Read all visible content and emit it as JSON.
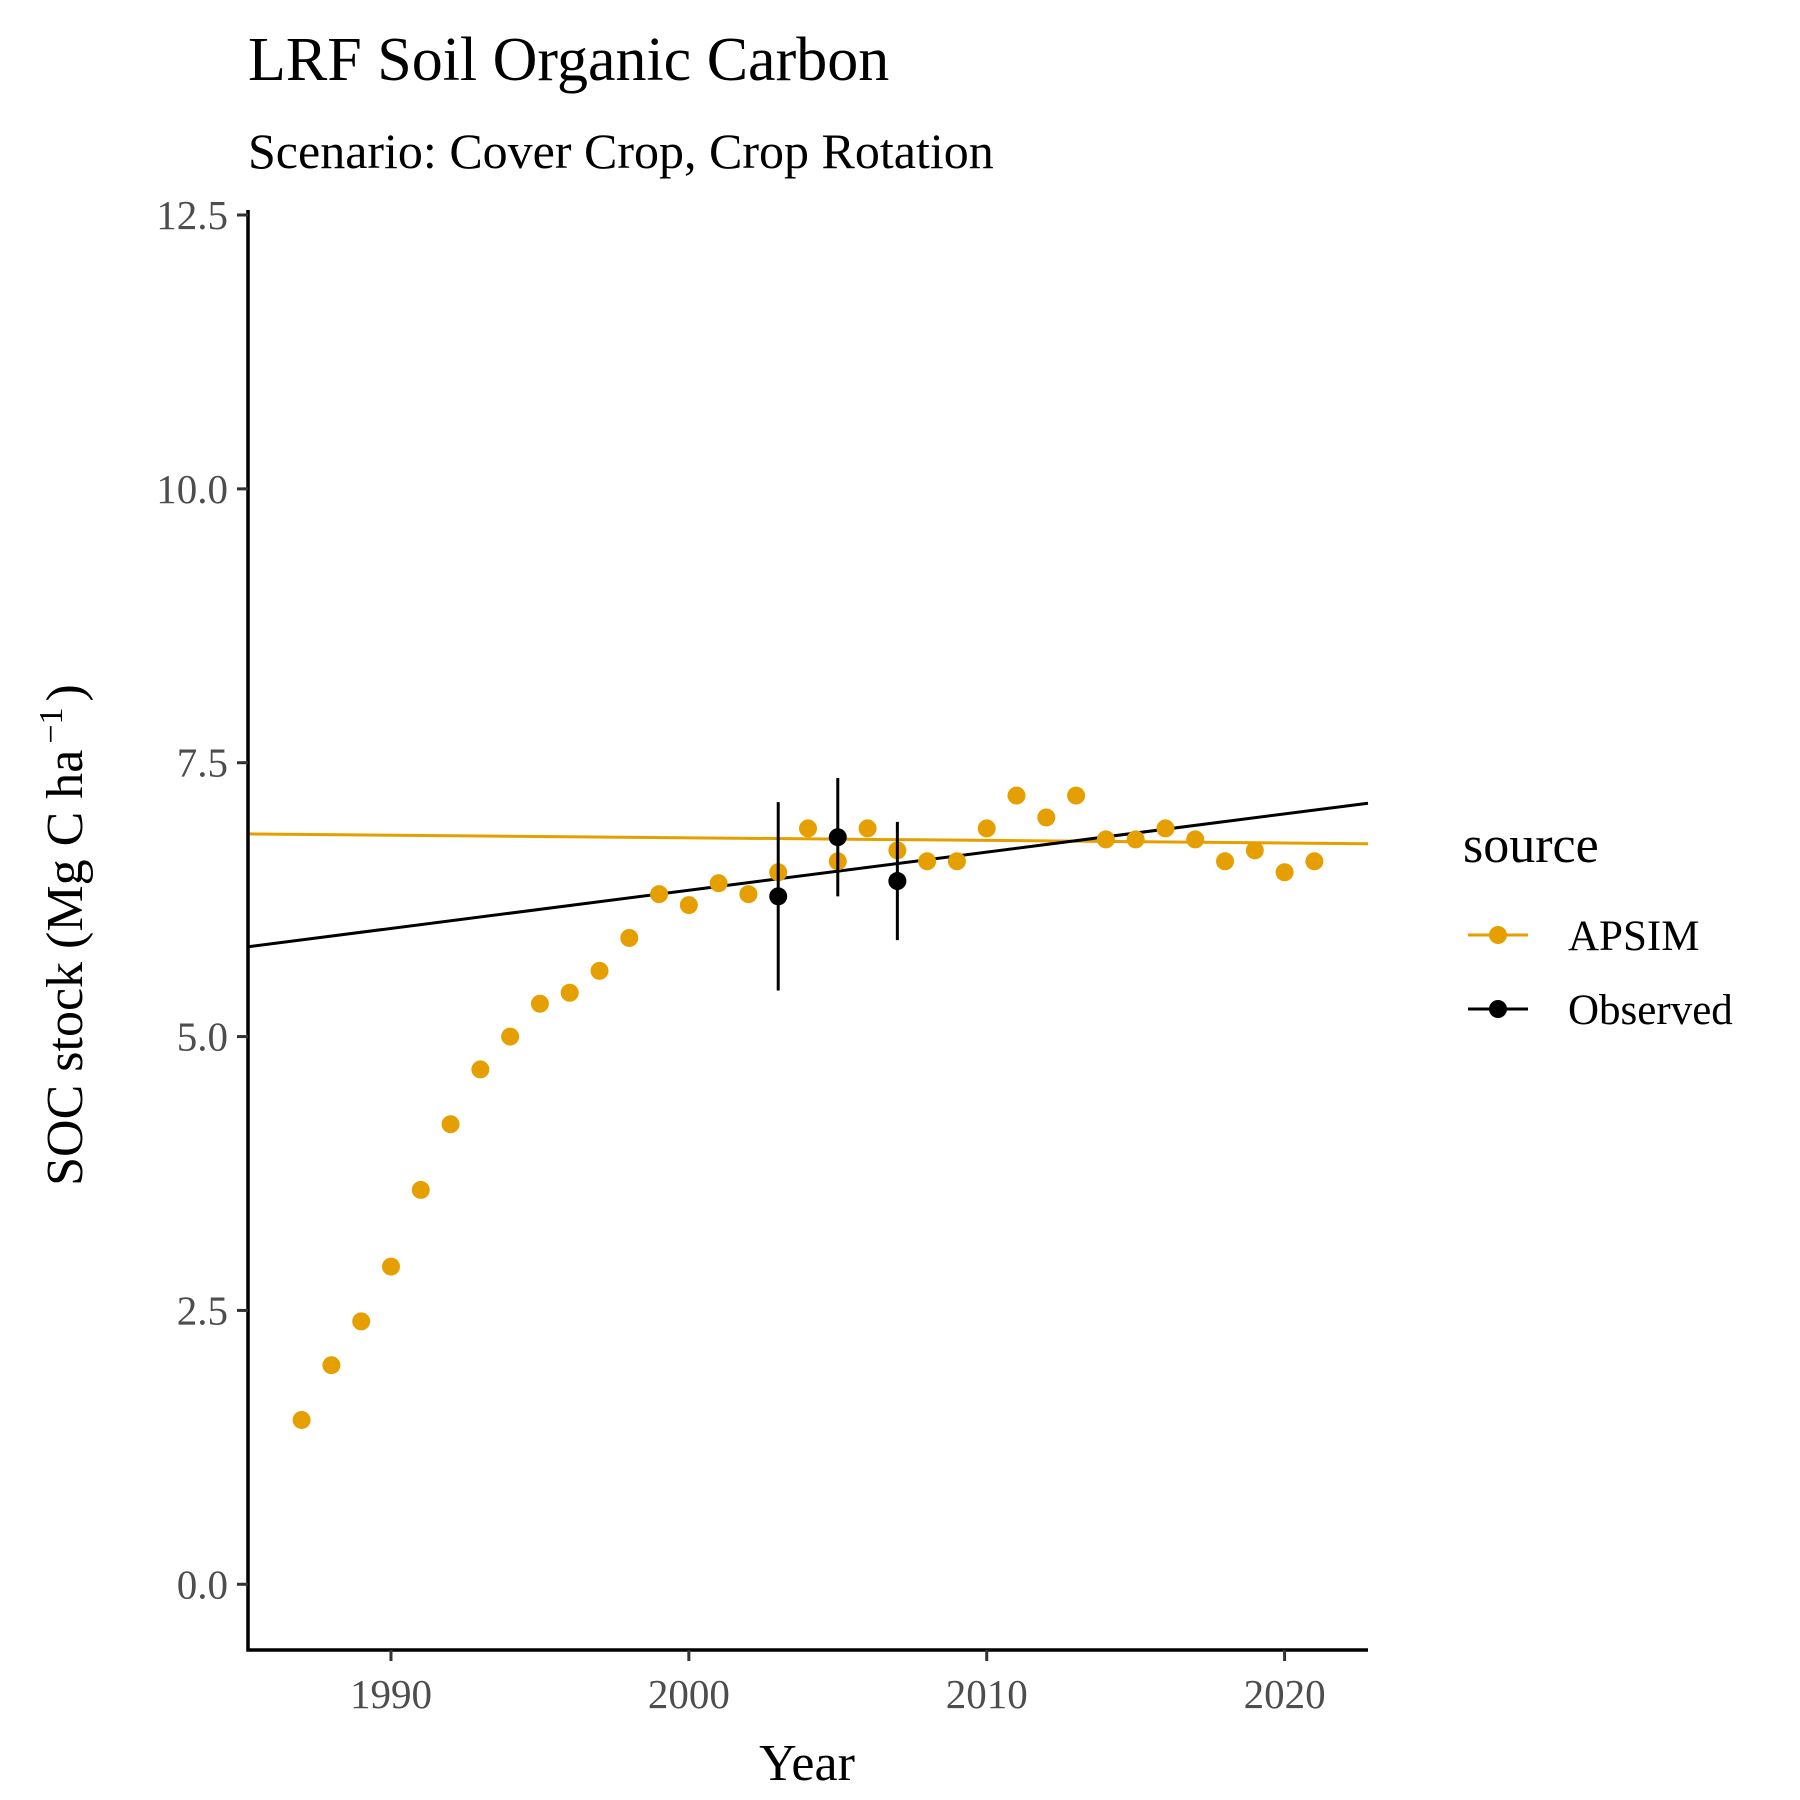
{
  "chart_data": {
    "type": "scatter",
    "title": "LRF Soil Organic Carbon",
    "subtitle": "Scenario: Cover Crop, Crop Rotation",
    "xlabel": "Year",
    "ylabel": "SOC stock (Mg C ha",
    "ylabel_superscript": "−1",
    "ylabel_close": ")",
    "xlim": [
      1985.2,
      2022.8
    ],
    "ylim": [
      -0.6,
      12.5
    ],
    "x_ticks": [
      1990,
      2000,
      2010,
      2020
    ],
    "x_tick_labels": [
      "1990",
      "2000",
      "2010",
      "2020"
    ],
    "y_ticks": [
      0,
      2.5,
      5,
      7.5,
      10,
      12.5
    ],
    "y_tick_labels": [
      "0.0",
      "2.5",
      "5.0",
      "7.5",
      "10.0",
      "12.5"
    ],
    "grid": false,
    "legend": {
      "title": "source",
      "position": "right",
      "entries": [
        "APSIM",
        "Observed"
      ]
    },
    "series": [
      {
        "name": "APSIM",
        "color": "#E69F00",
        "x": [
          1987,
          1988,
          1989,
          1990,
          1991,
          1992,
          1993,
          1994,
          1995,
          1996,
          1997,
          1998,
          1999,
          2000,
          2001,
          2002,
          2003,
          2004,
          2005,
          2006,
          2007,
          2008,
          2009,
          2010,
          2011,
          2012,
          2013,
          2014,
          2015,
          2016,
          2017,
          2018,
          2019,
          2020,
          2021
        ],
        "y": [
          1.5,
          2.0,
          2.4,
          2.9,
          3.6,
          4.2,
          4.7,
          5.0,
          5.3,
          5.4,
          5.6,
          5.9,
          6.3,
          6.2,
          6.4,
          6.3,
          6.5,
          6.9,
          6.6,
          6.9,
          6.7,
          6.6,
          6.6,
          6.9,
          7.2,
          7.0,
          7.2,
          6.8,
          6.8,
          6.9,
          6.8,
          6.6,
          6.7,
          6.5,
          6.6
        ],
        "trend": {
          "x": [
            1985.2,
            2022.8
          ],
          "y": [
            6.85,
            6.76
          ]
        }
      },
      {
        "name": "Observed",
        "color": "#000000",
        "x": [
          2003,
          2005,
          2007
        ],
        "y": [
          6.28,
          6.82,
          6.42
        ],
        "ymin": [
          5.42,
          6.28,
          5.88
        ],
        "ymax": [
          7.14,
          7.36,
          6.96
        ],
        "trend": {
          "x": [
            1985.2,
            2022.8
          ],
          "y": [
            5.82,
            7.13
          ]
        }
      }
    ]
  }
}
